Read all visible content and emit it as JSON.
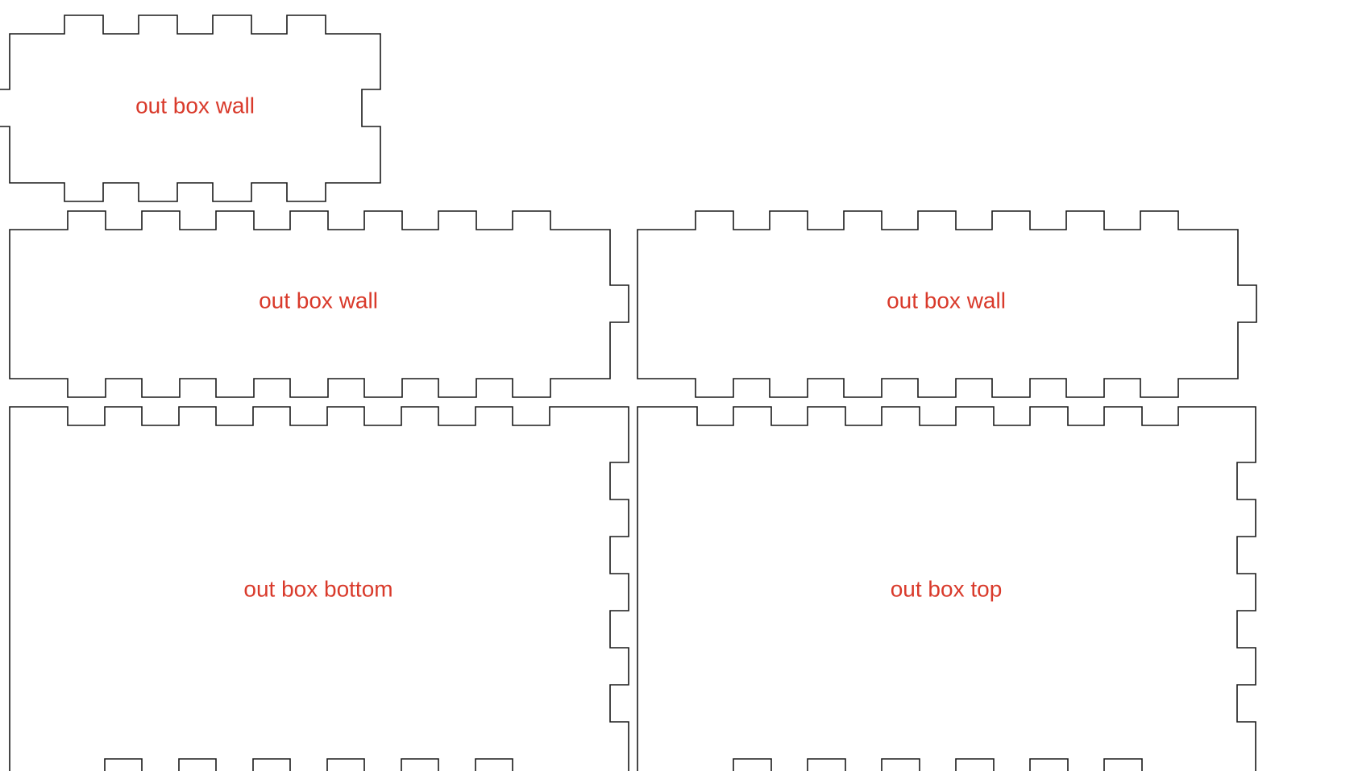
{
  "colors": {
    "outline": "#1a1a1a",
    "label": "#d93a2b",
    "background": "#ffffff"
  },
  "panels": [
    {
      "id": "wall-small",
      "label": "out box wall"
    },
    {
      "id": "wall-left",
      "label": "out box wall"
    },
    {
      "id": "wall-right",
      "label": "out box wall"
    },
    {
      "id": "bottom",
      "label": "out box bottom"
    },
    {
      "id": "top",
      "label": "out box top"
    }
  ]
}
